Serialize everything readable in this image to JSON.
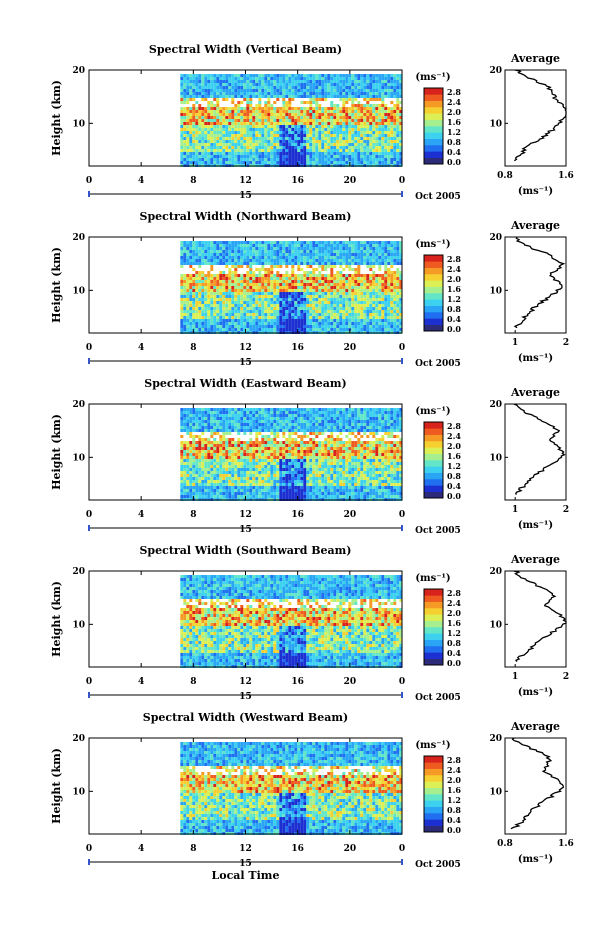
{
  "figure": {
    "xlabel": "Local Time",
    "date_label": "Oct 2005",
    "day_label": "15",
    "ylabel": "Height (km)",
    "unit": "(ms⁻¹)",
    "avg_title": "Average",
    "avg_xlabel": "(ms⁻¹)"
  },
  "colorbar": {
    "ticks": [
      "2.8",
      "2.4",
      "2.0",
      "1.6",
      "1.2",
      "0.8",
      "0.4",
      "0.0"
    ],
    "colors": [
      "#2b2b7a",
      "#1c2fd0",
      "#1f6ff0",
      "#2aa5f5",
      "#3cd1ee",
      "#63e6c8",
      "#a6ef8f",
      "#dcef55",
      "#f5d030",
      "#f59a25",
      "#ee5a20",
      "#d7231c"
    ]
  },
  "chart_data": [
    {
      "type": "heatmap",
      "title": "Spectral Width (Vertical Beam)",
      "x_ticks": [
        "0",
        "4",
        "8",
        "12",
        "16",
        "20",
        "0"
      ],
      "y_ticks": [
        "20",
        "10"
      ],
      "xlim": [
        0,
        24
      ],
      "ylim": [
        2,
        20
      ],
      "data_start_hour": 7,
      "profile": {
        "type": "line",
        "xlim": [
          0.8,
          1.6
        ],
        "x_ticks": [
          "0.8",
          "1.6"
        ],
        "y_ticks": [
          "20",
          "10"
        ],
        "heights": [
          3,
          4,
          5,
          6,
          7,
          8,
          9,
          10,
          11,
          12,
          13,
          14,
          15,
          16,
          17,
          18,
          19,
          20
        ],
        "values": [
          0.9,
          1.0,
          1.05,
          1.1,
          1.25,
          1.35,
          1.45,
          1.5,
          1.55,
          1.6,
          1.58,
          1.5,
          1.45,
          1.4,
          1.35,
          1.2,
          1.05,
          0.95
        ]
      }
    },
    {
      "type": "heatmap",
      "title": "Spectral Width (Northward Beam)",
      "x_ticks": [
        "0",
        "4",
        "8",
        "12",
        "16",
        "20",
        "0"
      ],
      "y_ticks": [
        "20",
        "10"
      ],
      "xlim": [
        0,
        24
      ],
      "ylim": [
        2,
        20
      ],
      "data_start_hour": 7,
      "profile": {
        "type": "line",
        "xlim": [
          0.8,
          2.0
        ],
        "x_ticks": [
          "1",
          "2"
        ],
        "y_ticks": [
          "20",
          "10"
        ],
        "heights": [
          3,
          4,
          5,
          6,
          7,
          8,
          9,
          10,
          11,
          12,
          13,
          14,
          15,
          16,
          17,
          18,
          19,
          20
        ],
        "values": [
          1.0,
          1.1,
          1.2,
          1.3,
          1.4,
          1.55,
          1.7,
          1.85,
          1.9,
          1.8,
          1.7,
          1.85,
          1.95,
          1.75,
          1.6,
          1.3,
          1.1,
          1.0
        ]
      }
    },
    {
      "type": "heatmap",
      "title": "Spectral Width (Eastward Beam)",
      "x_ticks": [
        "0",
        "4",
        "8",
        "12",
        "16",
        "20",
        "0"
      ],
      "y_ticks": [
        "20",
        "10"
      ],
      "xlim": [
        0,
        24
      ],
      "ylim": [
        2,
        20
      ],
      "data_start_hour": 7,
      "profile": {
        "type": "line",
        "xlim": [
          0.8,
          2.0
        ],
        "x_ticks": [
          "1",
          "2"
        ],
        "y_ticks": [
          "20",
          "10"
        ],
        "heights": [
          3,
          4,
          5,
          6,
          7,
          8,
          9,
          10,
          11,
          12,
          13,
          14,
          15,
          16,
          17,
          18,
          19,
          20
        ],
        "values": [
          1.0,
          1.1,
          1.2,
          1.3,
          1.45,
          1.6,
          1.75,
          1.9,
          1.95,
          1.85,
          1.7,
          1.75,
          1.85,
          1.7,
          1.5,
          1.3,
          1.1,
          1.0
        ]
      }
    },
    {
      "type": "heatmap",
      "title": "Spectral Width (Southward Beam)",
      "x_ticks": [
        "0",
        "4",
        "8",
        "12",
        "16",
        "20",
        "0"
      ],
      "y_ticks": [
        "20",
        "10"
      ],
      "xlim": [
        0,
        24
      ],
      "ylim": [
        2,
        20
      ],
      "data_start_hour": 7,
      "profile": {
        "type": "line",
        "xlim": [
          0.8,
          2.0
        ],
        "x_ticks": [
          "1",
          "2"
        ],
        "y_ticks": [
          "20",
          "10"
        ],
        "heights": [
          3,
          4,
          5,
          6,
          7,
          8,
          9,
          10,
          11,
          12,
          13,
          14,
          15,
          16,
          17,
          18,
          19,
          20
        ],
        "values": [
          1.0,
          1.1,
          1.25,
          1.35,
          1.5,
          1.65,
          1.8,
          1.95,
          2.0,
          1.85,
          1.65,
          1.6,
          1.75,
          1.7,
          1.5,
          1.3,
          1.1,
          1.0
        ]
      }
    },
    {
      "type": "heatmap",
      "title": "Spectral Width (Westward Beam)",
      "x_ticks": [
        "0",
        "4",
        "8",
        "12",
        "16",
        "20",
        "0"
      ],
      "y_ticks": [
        "20",
        "10"
      ],
      "xlim": [
        0,
        24
      ],
      "ylim": [
        2,
        20
      ],
      "data_start_hour": 7,
      "profile": {
        "type": "line",
        "xlim": [
          0.8,
          1.6
        ],
        "x_ticks": [
          "0.8",
          "1.6"
        ],
        "y_ticks": [
          "20",
          "10"
        ],
        "heights": [
          3,
          4,
          5,
          6,
          7,
          8,
          9,
          10,
          11,
          12,
          13,
          14,
          15,
          16,
          17,
          18,
          19,
          20
        ],
        "values": [
          0.9,
          1.0,
          1.05,
          1.1,
          1.2,
          1.3,
          1.4,
          1.5,
          1.55,
          1.5,
          1.4,
          1.3,
          1.35,
          1.4,
          1.3,
          1.15,
          1.0,
          0.9
        ]
      }
    }
  ]
}
